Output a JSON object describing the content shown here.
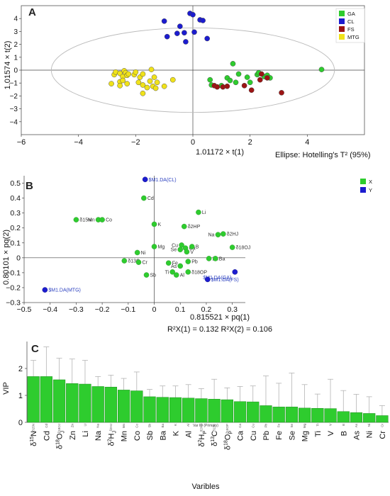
{
  "chart_data": [
    {
      "type": "scatter",
      "panel_label": "A",
      "xlabel": "1.01172 × t(1)",
      "ylabel": "1.01574 × t(2)",
      "xlim": [
        -6,
        6
      ],
      "ylim": [
        -5,
        5
      ],
      "xticks": [
        -6,
        -4,
        -2,
        0,
        2,
        4
      ],
      "yticks": [
        -4,
        -3,
        -2,
        -1,
        0,
        1,
        2,
        3,
        4
      ],
      "ellipse_label": "Ellipse: Hotelling's T² (95%)",
      "ellipse": {
        "rx": 4.95,
        "ry": 3.28
      },
      "legend_position": "top-right",
      "series": [
        {
          "name": "GA",
          "color": "#2ecc2e",
          "points": [
            [
              4.5,
              0.05
            ],
            [
              1.4,
              0.5
            ],
            [
              1.6,
              -0.3
            ],
            [
              1.2,
              -0.6
            ],
            [
              1.9,
              -0.55
            ],
            [
              2.25,
              -0.35
            ],
            [
              2.5,
              -0.5
            ],
            [
              2.6,
              -0.4
            ],
            [
              2.7,
              -0.6
            ],
            [
              2.0,
              -0.95
            ],
            [
              1.5,
              -0.95
            ],
            [
              1.3,
              -0.8
            ],
            [
              0.6,
              -0.75
            ],
            [
              1.0,
              -1.2
            ],
            [
              0.65,
              -1.15
            ],
            [
              2.3,
              -0.2
            ]
          ]
        },
        {
          "name": "CL",
          "color": "#1c1ccf",
          "points": [
            [
              -0.1,
              4.4
            ],
            [
              0.0,
              4.3
            ],
            [
              0.25,
              3.9
            ],
            [
              0.35,
              3.85
            ],
            [
              -1.0,
              3.8
            ],
            [
              -0.45,
              3.4
            ],
            [
              -0.3,
              2.9
            ],
            [
              0.05,
              2.95
            ],
            [
              -0.55,
              2.85
            ],
            [
              -0.9,
              2.6
            ],
            [
              -0.25,
              2.2
            ],
            [
              0.5,
              2.45
            ]
          ]
        },
        {
          "name": "FS",
          "color": "#9c1414",
          "points": [
            [
              2.4,
              -0.3
            ],
            [
              2.6,
              -0.6
            ],
            [
              2.35,
              -0.75
            ],
            [
              0.75,
              -1.2
            ],
            [
              0.85,
              -1.3
            ],
            [
              1.05,
              -1.3
            ],
            [
              1.2,
              -1.25
            ],
            [
              1.8,
              -1.2
            ],
            [
              2.05,
              -1.55
            ],
            [
              3.1,
              -1.75
            ]
          ]
        },
        {
          "name": "MTG",
          "color": "#f0e21a",
          "points": [
            [
              -2.85,
              -1.05
            ],
            [
              -2.75,
              -0.35
            ],
            [
              -2.7,
              -0.15
            ],
            [
              -2.55,
              -0.25
            ],
            [
              -2.45,
              -0.5
            ],
            [
              -2.55,
              -0.9
            ],
            [
              -2.45,
              -0.8
            ],
            [
              -2.4,
              -0.05
            ],
            [
              -2.35,
              -0.2
            ],
            [
              -2.3,
              -0.4
            ],
            [
              -2.25,
              -0.3
            ],
            [
              -2.05,
              -0.35
            ],
            [
              -2.0,
              -0.15
            ],
            [
              -1.85,
              -0.55
            ],
            [
              -1.75,
              -0.3
            ],
            [
              -1.45,
              0.05
            ],
            [
              -1.35,
              -0.55
            ],
            [
              -1.5,
              -0.85
            ],
            [
              -2.55,
              -1.2
            ],
            [
              -2.3,
              -1.05
            ],
            [
              -1.9,
              -0.95
            ],
            [
              -1.75,
              -1.15
            ],
            [
              -1.6,
              -1.35
            ],
            [
              -1.4,
              -1.25
            ],
            [
              -1.3,
              -1.4
            ],
            [
              -1.25,
              -0.95
            ],
            [
              -1.0,
              -1.25
            ],
            [
              -0.7,
              -0.75
            ],
            [
              -1.75,
              -1.8
            ]
          ]
        }
      ]
    },
    {
      "type": "scatter",
      "panel_label": "B",
      "xlabel": "0.815521 × pq(1)",
      "ylabel": "0.80101 × pq(2)",
      "xlim": [
        -0.5,
        0.35
      ],
      "ylim": [
        -0.3,
        0.55
      ],
      "xticks": [
        -0.5,
        -0.4,
        -0.3,
        -0.2,
        -0.1,
        0,
        0.1,
        0.2,
        0.3
      ],
      "yticks": [
        -0.3,
        -0.2,
        -0.1,
        0,
        0.1,
        0.2,
        0.3,
        0.4,
        0.5
      ],
      "footer": "R²X(1) = 0.132   R²X(2) = 0.106",
      "legend_position": "top-right",
      "legend": [
        {
          "name": "X",
          "color": "#2ecc2e"
        },
        {
          "name": "Y",
          "color": "#1c1ccf"
        }
      ],
      "x_points": [
        {
          "label": "Cd",
          "x": -0.04,
          "y": 0.4
        },
        {
          "label": "δ15N",
          "x": -0.3,
          "y": 0.255
        },
        {
          "label": "Mn",
          "x": -0.215,
          "y": 0.255
        },
        {
          "label": "Co",
          "x": -0.2,
          "y": 0.255
        },
        {
          "label": "K",
          "x": 0.0,
          "y": 0.225
        },
        {
          "label": "Li",
          "x": 0.17,
          "y": 0.305
        },
        {
          "label": "δ2HP",
          "x": 0.115,
          "y": 0.21
        },
        {
          "label": "Na",
          "x": 0.245,
          "y": 0.155
        },
        {
          "label": "δ2HJ",
          "x": 0.265,
          "y": 0.16
        },
        {
          "label": "δ18OJ",
          "x": 0.3,
          "y": 0.07
        },
        {
          "label": "Mg",
          "x": 0.0,
          "y": 0.075
        },
        {
          "label": "Cu",
          "x": 0.105,
          "y": 0.085
        },
        {
          "label": "Ni",
          "x": -0.065,
          "y": 0.035
        },
        {
          "label": "Se",
          "x": 0.1,
          "y": 0.055
        },
        {
          "label": "Ca",
          "x": 0.12,
          "y": 0.065
        },
        {
          "label": "B",
          "x": 0.145,
          "y": 0.075
        },
        {
          "label": "V",
          "x": 0.125,
          "y": 0.04
        },
        {
          "label": "δ13C",
          "x": -0.115,
          "y": -0.02
        },
        {
          "label": "Cr",
          "x": -0.06,
          "y": -0.03
        },
        {
          "label": "Fe",
          "x": 0.055,
          "y": -0.035
        },
        {
          "label": "Pb",
          "x": 0.13,
          "y": -0.025
        },
        {
          "label": "Zn",
          "x": 0.21,
          "y": -0.005
        },
        {
          "label": "Ba",
          "x": 0.235,
          "y": -0.005
        },
        {
          "label": "As",
          "x": 0.1,
          "y": -0.055
        },
        {
          "label": "Ti",
          "x": 0.07,
          "y": -0.095
        },
        {
          "label": "Sb",
          "x": -0.03,
          "y": -0.115
        },
        {
          "label": "Al",
          "x": 0.085,
          "y": -0.115
        },
        {
          "label": "δ18OP",
          "x": 0.13,
          "y": -0.095
        }
      ],
      "y_points": [
        {
          "label": "$M1.DA(CL)",
          "x": -0.035,
          "y": 0.525
        },
        {
          "label": "$M1.DA(MTG)",
          "x": -0.42,
          "y": -0.215
        },
        {
          "label": "$M1.DA(GA)",
          "x": 0.31,
          "y": -0.095
        },
        {
          "label": "$M1.DA(FS)",
          "x": 0.205,
          "y": -0.145
        }
      ]
    },
    {
      "type": "bar",
      "panel_label": "C",
      "xlabel": "Varibles",
      "ylabel": "VIP",
      "inner_xlabel": "Var ID (Primary)",
      "ylim": [
        0,
        3
      ],
      "yticks": [
        0,
        1,
        2
      ],
      "categories": [
        "δ15N",
        "Cd",
        "δ18OJ",
        "Zn",
        "Li",
        "Na",
        "δ2HJ",
        "Mn",
        "Co",
        "Sb",
        "Ba",
        "K",
        "Al",
        "δ2HP",
        "δ13C",
        "δ18OP",
        "Ca",
        "Cu",
        "Pb",
        "Fe",
        "Se",
        "Mg",
        "Ti",
        "V",
        "B",
        "As",
        "Ni",
        "Cr"
      ],
      "axis_labels": [
        {
          "base": "δ",
          "sup": "15",
          "main": "N",
          "sub": ""
        },
        {
          "base": "",
          "sup": "",
          "main": "Cd",
          "sub": ""
        },
        {
          "base": "δ",
          "sup": "18",
          "main": "O",
          "sub": "J"
        },
        {
          "base": "",
          "sup": "",
          "main": "Zn",
          "sub": ""
        },
        {
          "base": "",
          "sup": "",
          "main": "Li",
          "sub": ""
        },
        {
          "base": "",
          "sup": "",
          "main": "Na",
          "sub": ""
        },
        {
          "base": "δ",
          "sup": "2",
          "main": "H",
          "sub": "J"
        },
        {
          "base": "",
          "sup": "",
          "main": "Mn",
          "sub": ""
        },
        {
          "base": "",
          "sup": "",
          "main": "Co",
          "sub": ""
        },
        {
          "base": "",
          "sup": "",
          "main": "Sb",
          "sub": ""
        },
        {
          "base": "",
          "sup": "",
          "main": "Ba",
          "sub": ""
        },
        {
          "base": "",
          "sup": "",
          "main": "K",
          "sub": ""
        },
        {
          "base": "",
          "sup": "",
          "main": "Al",
          "sub": ""
        },
        {
          "base": "δ",
          "sup": "2",
          "main": "H",
          "sub": "P"
        },
        {
          "base": "δ",
          "sup": "13",
          "main": "C",
          "sub": ""
        },
        {
          "base": "δ",
          "sup": "18",
          "main": "O",
          "sub": "P"
        },
        {
          "base": "",
          "sup": "",
          "main": "Ca",
          "sub": ""
        },
        {
          "base": "",
          "sup": "",
          "main": "Cu",
          "sub": ""
        },
        {
          "base": "",
          "sup": "",
          "main": "Pb",
          "sub": ""
        },
        {
          "base": "",
          "sup": "",
          "main": "Fe",
          "sub": ""
        },
        {
          "base": "",
          "sup": "",
          "main": "Se",
          "sub": ""
        },
        {
          "base": "",
          "sup": "",
          "main": "Mg",
          "sub": ""
        },
        {
          "base": "",
          "sup": "",
          "main": "Ti",
          "sub": ""
        },
        {
          "base": "",
          "sup": "",
          "main": "V",
          "sub": ""
        },
        {
          "base": "",
          "sup": "",
          "main": "B",
          "sub": ""
        },
        {
          "base": "",
          "sup": "",
          "main": "As",
          "sub": ""
        },
        {
          "base": "",
          "sup": "",
          "main": "Ni",
          "sub": ""
        },
        {
          "base": "",
          "sup": "",
          "main": "Cr",
          "sub": ""
        }
      ],
      "inner_tick_labels": [
        "δ15N",
        "Cd",
        "δ18OJ",
        "Zn",
        "Li",
        "Na",
        "δ2HJ",
        "Mn",
        "Co",
        "Sb",
        "Ba",
        "K",
        "Al",
        "δ2HP",
        "δ13C",
        "δ18OP",
        "Ca",
        "Cu",
        "Pb",
        "Fe",
        "Se",
        "Mg",
        "Ti",
        "V",
        "B",
        "As",
        "Ni",
        "Cr"
      ],
      "values": [
        1.7,
        1.7,
        1.58,
        1.44,
        1.42,
        1.33,
        1.31,
        1.2,
        1.17,
        0.95,
        0.93,
        0.92,
        0.9,
        0.88,
        0.86,
        0.84,
        0.77,
        0.76,
        0.62,
        0.57,
        0.57,
        0.53,
        0.52,
        0.51,
        0.4,
        0.36,
        0.33,
        0.25
      ],
      "error_upper": [
        2.3,
        2.8,
        2.38,
        2.35,
        2.3,
        1.7,
        1.75,
        1.63,
        1.87,
        1.22,
        1.35,
        1.35,
        1.4,
        1.25,
        1.6,
        1.28,
        1.33,
        1.35,
        1.72,
        1.45,
        1.83,
        1.4,
        1.05,
        1.6,
        1.18,
        1.04,
        0.95,
        0.62
      ],
      "bar_color": "#2ecc2e"
    }
  ]
}
